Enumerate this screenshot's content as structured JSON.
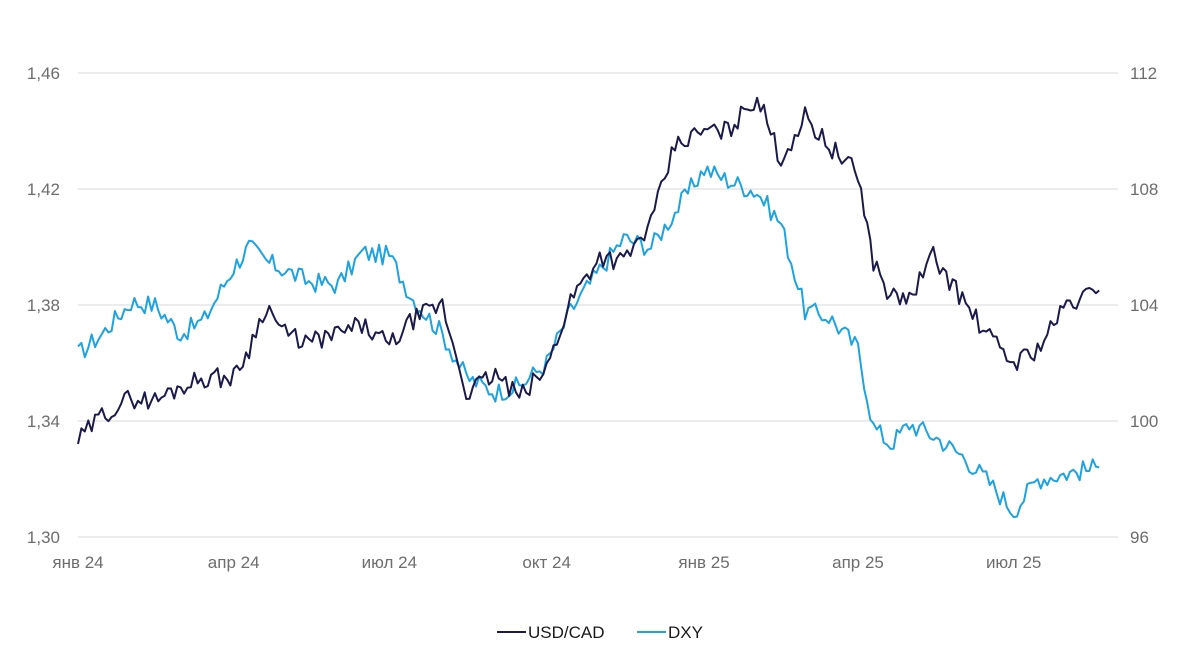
{
  "chart_data": {
    "type": "line",
    "title": "",
    "xlabel": "",
    "ylabel": "",
    "x_ticks": [
      "янв 24",
      "апр 24",
      "июл 24",
      "окт 24",
      "янв 25",
      "апр 25",
      "июл 25"
    ],
    "x_tick_dates": [
      "2024-01-01",
      "2024-04-01",
      "2024-07-01",
      "2024-10-01",
      "2025-01-01",
      "2025-04-01",
      "2025-07-01"
    ],
    "y_left": {
      "ticks": [
        "1,30",
        "1,34",
        "1,38",
        "1,42",
        "1,46"
      ],
      "range": [
        1.3,
        1.46
      ]
    },
    "y_right": {
      "ticks": [
        "96",
        "100",
        "104",
        "108",
        "112"
      ],
      "range": [
        96,
        112
      ]
    },
    "grid": true,
    "legend_position": "bottom",
    "colors": {
      "usdcad": "#1b1a4b",
      "dxy": "#1fa3e0",
      "grid": "#d9d9d9",
      "ticks": "#6d6d6d"
    },
    "series": [
      {
        "name": "USD/CAD",
        "axis": "left",
        "color": "#1b1a4b",
        "x": [
          "2024-01-01",
          "2024-01-15",
          "2024-02-01",
          "2024-02-15",
          "2024-03-01",
          "2024-03-15",
          "2024-04-01",
          "2024-04-10",
          "2024-04-20",
          "2024-05-01",
          "2024-05-15",
          "2024-06-01",
          "2024-06-15",
          "2024-07-01",
          "2024-07-15",
          "2024-08-01",
          "2024-08-15",
          "2024-09-01",
          "2024-09-15",
          "2024-10-01",
          "2024-10-15",
          "2024-11-01",
          "2024-11-15",
          "2024-12-01",
          "2024-12-15",
          "2025-01-01",
          "2025-01-15",
          "2025-02-01",
          "2025-02-15",
          "2025-03-01",
          "2025-03-15",
          "2025-04-01",
          "2025-04-10",
          "2025-04-20",
          "2025-05-01",
          "2025-05-15",
          "2025-06-01",
          "2025-06-15",
          "2025-07-01",
          "2025-07-15",
          "2025-08-01",
          "2025-08-20"
        ],
        "y": [
          1.333,
          1.342,
          1.348,
          1.347,
          1.352,
          1.355,
          1.355,
          1.365,
          1.38,
          1.37,
          1.367,
          1.37,
          1.373,
          1.366,
          1.375,
          1.38,
          1.35,
          1.356,
          1.348,
          1.358,
          1.382,
          1.397,
          1.395,
          1.408,
          1.435,
          1.44,
          1.44,
          1.452,
          1.43,
          1.445,
          1.435,
          1.425,
          1.395,
          1.383,
          1.382,
          1.397,
          1.382,
          1.37,
          1.36,
          1.365,
          1.38,
          1.385
        ]
      },
      {
        "name": "DXY",
        "axis": "right",
        "color": "#1fa3e0",
        "x": [
          "2024-01-01",
          "2024-01-15",
          "2024-02-01",
          "2024-02-15",
          "2024-03-01",
          "2024-03-15",
          "2024-04-01",
          "2024-04-10",
          "2024-04-20",
          "2024-05-01",
          "2024-05-15",
          "2024-06-01",
          "2024-06-15",
          "2024-07-01",
          "2024-07-15",
          "2024-08-01",
          "2024-08-15",
          "2024-09-01",
          "2024-09-15",
          "2024-10-01",
          "2024-10-15",
          "2024-11-01",
          "2024-11-15",
          "2024-12-01",
          "2024-12-15",
          "2025-01-01",
          "2025-01-15",
          "2025-02-01",
          "2025-02-15",
          "2025-03-01",
          "2025-03-15",
          "2025-04-01",
          "2025-04-10",
          "2025-04-20",
          "2025-05-01",
          "2025-05-15",
          "2025-06-01",
          "2025-06-15",
          "2025-07-01",
          "2025-07-15",
          "2025-08-01",
          "2025-08-20"
        ],
        "y": [
          102.3,
          103.0,
          104.1,
          104.0,
          103.0,
          103.5,
          105.3,
          106.0,
          105.5,
          105.2,
          104.8,
          104.7,
          105.8,
          105.7,
          104.2,
          103.0,
          101.5,
          101.0,
          101.2,
          102.0,
          103.8,
          105.2,
          106.3,
          106.0,
          107.2,
          108.7,
          108.3,
          107.9,
          106.8,
          103.8,
          103.6,
          102.5,
          99.8,
          99.2,
          99.9,
          99.5,
          98.8,
          98.0,
          96.9,
          98.0,
          98.2,
          98.4
        ]
      }
    ]
  }
}
